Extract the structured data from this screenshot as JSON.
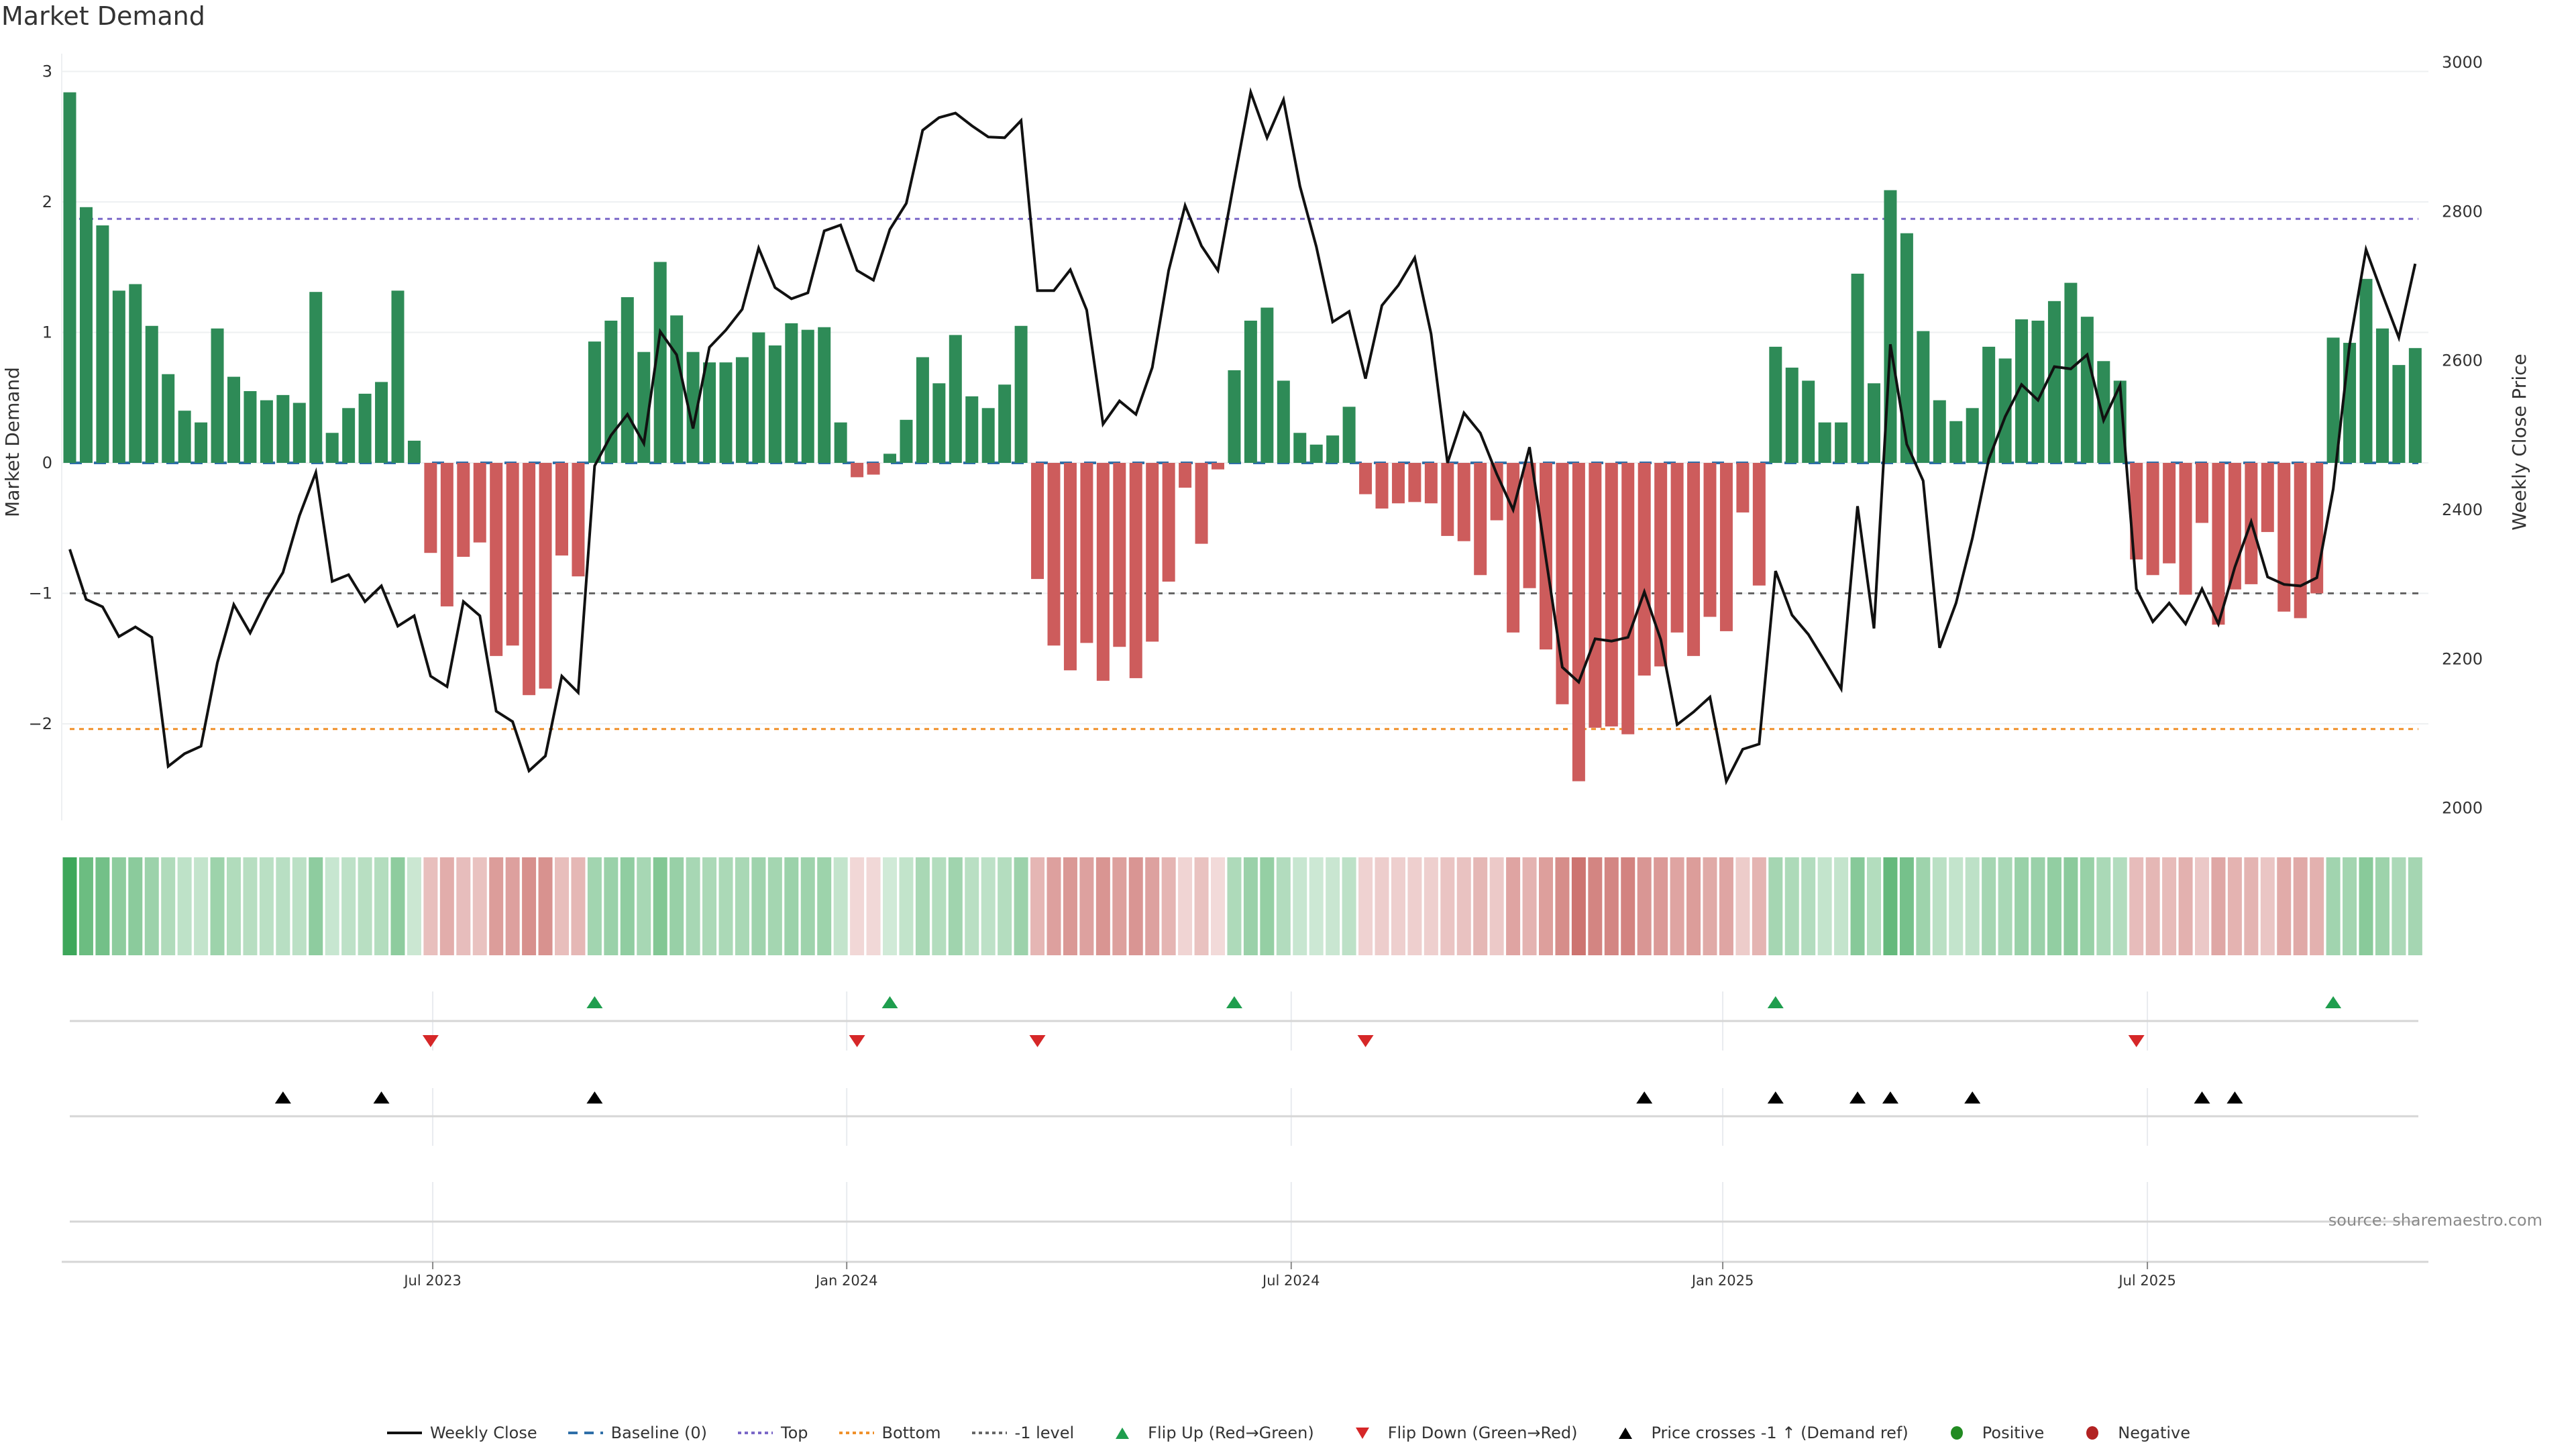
{
  "chart_data": {
    "type": "bar",
    "title": "Market Demand",
    "ylabel": "Market Demand",
    "y2label": "Weekly Close Price",
    "ylim": [
      -2.74,
      3.06
    ],
    "y2lim": [
      1984,
      2998
    ],
    "yticks": [
      -2,
      -1,
      0,
      1,
      2,
      3
    ],
    "ytick_labels": [
      "−2",
      "−1",
      "0",
      "1",
      "2",
      "3"
    ],
    "y2ticks": [
      2000,
      2200,
      2400,
      2600,
      2800,
      3000
    ],
    "y2tick_labels": [
      "2000",
      "2200",
      "2400",
      "2600",
      "2800",
      "3000"
    ],
    "x_unit": "week index",
    "xlim": [
      0,
      143
    ],
    "xticks": [
      22.13,
      47.37,
      74.47,
      100.78,
      126.67
    ],
    "xtick_labels": [
      "Jul 2023",
      "Jan 2024",
      "Jul 2024",
      "Jan 2025",
      "Jul 2025"
    ],
    "grid": true,
    "levels": {
      "baseline": 0,
      "top": 1.87,
      "bottom": -2.04,
      "minus_one": -1
    },
    "series": [
      {
        "name": "Market Demand",
        "type": "bar",
        "values": [
          2.84,
          1.96,
          1.82,
          1.32,
          1.37,
          1.05,
          0.68,
          0.4,
          0.31,
          1.03,
          0.66,
          0.55,
          0.48,
          0.52,
          0.46,
          1.31,
          0.23,
          0.42,
          0.53,
          0.62,
          1.32,
          0.17,
          -0.69,
          -1.1,
          -0.72,
          -0.61,
          -1.48,
          -1.4,
          -1.78,
          -1.73,
          -0.71,
          -0.87,
          0.93,
          1.09,
          1.27,
          0.85,
          1.54,
          1.13,
          0.85,
          0.77,
          0.77,
          0.81,
          1.0,
          0.9,
          1.07,
          1.02,
          1.04,
          0.31,
          -0.11,
          -0.09,
          0.07,
          0.33,
          0.81,
          0.61,
          0.98,
          0.51,
          0.42,
          0.6,
          1.05,
          -0.89,
          -1.4,
          -1.59,
          -1.38,
          -1.67,
          -1.41,
          -1.65,
          -1.37,
          -0.91,
          -0.19,
          -0.62,
          -0.05,
          0.71,
          1.09,
          1.19,
          0.63,
          0.23,
          0.14,
          0.21,
          0.43,
          -0.24,
          -0.35,
          -0.31,
          -0.3,
          -0.31,
          -0.56,
          -0.6,
          -0.86,
          -0.44,
          -1.3,
          -0.96,
          -1.43,
          -1.85,
          -2.44,
          -2.03,
          -2.02,
          -2.08,
          -1.63,
          -1.56,
          -1.3,
          -1.48,
          -1.18,
          -1.29,
          -0.38,
          -0.94,
          0.89,
          0.73,
          0.63,
          0.31,
          0.31,
          1.45,
          0.61,
          2.09,
          1.76,
          1.01,
          0.48,
          0.32,
          0.42,
          0.89,
          0.8,
          1.1,
          1.09,
          1.24,
          1.38,
          1.12,
          0.78,
          0.63,
          -0.74,
          -0.86,
          -0.77,
          -1.01,
          -0.46,
          -1.24,
          -0.97,
          -0.93,
          -0.53,
          -1.14,
          -1.19,
          -1.0,
          0.96,
          0.92,
          1.41,
          1.03,
          0.75,
          0.88
        ]
      },
      {
        "name": "Weekly Close",
        "type": "line",
        "axis": "right",
        "values": [
          2347,
          2280,
          2270,
          2230,
          2243,
          2229,
          2056,
          2073,
          2083,
          2195,
          2273,
          2235,
          2280,
          2316,
          2392,
          2450,
          2304,
          2313,
          2277,
          2298,
          2244,
          2258,
          2177,
          2163,
          2277,
          2258,
          2130,
          2116,
          2050,
          2070,
          2177,
          2155,
          2459,
          2500,
          2528,
          2489,
          2639,
          2608,
          2509,
          2618,
          2641,
          2669,
          2751,
          2698,
          2683,
          2691,
          2774,
          2782,
          2721,
          2708,
          2776,
          2811,
          2909,
          2926,
          2932,
          2915,
          2900,
          2899,
          2922,
          2694,
          2694,
          2722,
          2668,
          2515,
          2546,
          2528,
          2591,
          2721,
          2808,
          2754,
          2721,
          2842,
          2960,
          2899,
          2950,
          2834,
          2753,
          2652,
          2666,
          2576,
          2674,
          2701,
          2738,
          2636,
          2463,
          2530,
          2503,
          2448,
          2400,
          2484,
          2335,
          2189,
          2169,
          2227,
          2224,
          2229,
          2290,
          2226,
          2112,
          2129,
          2149,
          2036,
          2079,
          2086,
          2318,
          2259,
          2233,
          2197,
          2160,
          2405,
          2241,
          2622,
          2488,
          2439,
          2215,
          2275,
          2362,
          2468,
          2525,
          2568,
          2547,
          2592,
          2589,
          2608,
          2520,
          2567,
          2294,
          2250,
          2275,
          2247,
          2294,
          2247,
          2323,
          2384,
          2310,
          2300,
          2298,
          2309,
          2428,
          2621,
          2749,
          2689,
          2631,
          2730
        ]
      }
    ],
    "events": {
      "flip_up": [
        32,
        50,
        71,
        104,
        138
      ],
      "flip_down": [
        22,
        48,
        59,
        79,
        126
      ],
      "price_crosses_minus1_up": [
        13,
        19,
        32,
        96,
        104,
        109,
        111,
        116,
        130,
        132
      ]
    },
    "legend_position": "bottom-center",
    "legend": [
      {
        "label": "Weekly Close",
        "symbol": "line",
        "color": "#111111"
      },
      {
        "label": "Baseline (0)",
        "symbol": "dash",
        "color": "#2f6fa8"
      },
      {
        "label": "Top",
        "symbol": "dot",
        "color": "#7b68c8"
      },
      {
        "label": "Bottom",
        "symbol": "dot",
        "color": "#f0902a"
      },
      {
        "label": "-1 level",
        "symbol": "dot",
        "color": "#666666"
      },
      {
        "label": "Flip Up (Red→Green)",
        "symbol": "triangle-up",
        "color": "#1f9e4e"
      },
      {
        "label": "Flip Down (Green→Red)",
        "symbol": "triangle-down",
        "color": "#d62728"
      },
      {
        "label": "Price crosses -1 ↑ (Demand ref)",
        "symbol": "triangle-up",
        "color": "#000000"
      },
      {
        "label": "Positive",
        "symbol": "circle",
        "color": "#228b22"
      },
      {
        "label": "Negative",
        "symbol": "circle",
        "color": "#b22222"
      }
    ],
    "colors": {
      "positive_bar": "#2e8b57",
      "negative_bar": "#cd5c5c",
      "heat_positive": "#3aa657",
      "heat_negative": "#c6605c",
      "grid": "#eef0f2",
      "separator": "#d6d6d6"
    },
    "source": "source: sharemaestro.com"
  }
}
